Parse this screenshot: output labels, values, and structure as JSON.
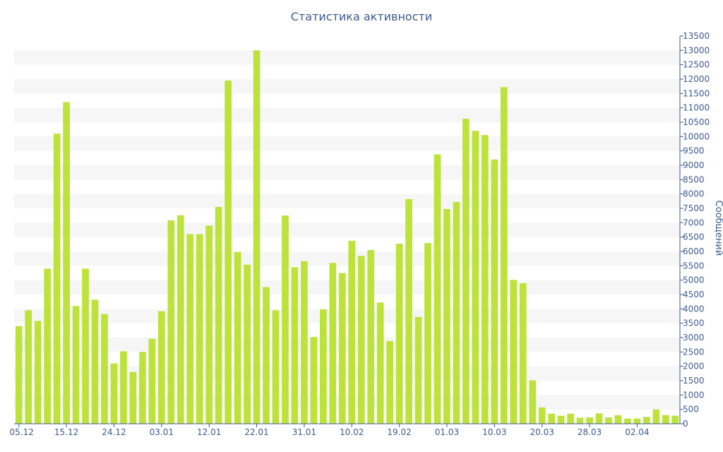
{
  "chart_data": {
    "type": "bar",
    "title": "Статистика активности",
    "ylabel": "Сообщений",
    "xlabel": "",
    "ylim": [
      0,
      13500
    ],
    "y_ticks": [
      0,
      500,
      1000,
      1500,
      2000,
      2500,
      3000,
      3500,
      4000,
      4500,
      5000,
      5500,
      6000,
      6500,
      7000,
      7500,
      8000,
      8500,
      9000,
      9500,
      10000,
      10500,
      11000,
      11500,
      12000,
      12500,
      13000,
      13500
    ],
    "y_axis_position": "right",
    "grid": "alternating horizontal bands",
    "bar_color": "#bde23a",
    "band_color": "#f6f6f6",
    "text_color": "#3d5a8c",
    "x_tick_labels": [
      {
        "index": 0,
        "label": "05.12"
      },
      {
        "index": 5,
        "label": "15.12"
      },
      {
        "index": 10,
        "label": "24.12"
      },
      {
        "index": 15,
        "label": "03.01"
      },
      {
        "index": 20,
        "label": "12.01"
      },
      {
        "index": 25,
        "label": "22.01"
      },
      {
        "index": 30,
        "label": "31.01"
      },
      {
        "index": 35,
        "label": "10.02"
      },
      {
        "index": 40,
        "label": "19.02"
      },
      {
        "index": 45,
        "label": "01.03"
      },
      {
        "index": 50,
        "label": "10.03"
      },
      {
        "index": 55,
        "label": "20.03"
      },
      {
        "index": 60,
        "label": "28.03"
      },
      {
        "index": 65,
        "label": "02.04"
      }
    ],
    "values": [
      3400,
      3950,
      3580,
      5400,
      10100,
      11200,
      4100,
      5400,
      4320,
      3820,
      2100,
      2520,
      1800,
      2500,
      2960,
      3920,
      7080,
      7260,
      6600,
      6600,
      6900,
      7550,
      11950,
      5980,
      5540,
      13000,
      4760,
      3950,
      7250,
      5450,
      5660,
      3020,
      3980,
      5600,
      5250,
      6370,
      5840,
      6050,
      4220,
      2880,
      6270,
      7820,
      3720,
      6290,
      9380,
      7480,
      7720,
      10620,
      10200,
      10050,
      9200,
      11720,
      5010,
      4890,
      1510,
      570,
      350,
      280,
      350,
      210,
      220,
      360,
      220,
      300,
      180,
      180,
      240,
      500,
      300,
      280
    ]
  }
}
